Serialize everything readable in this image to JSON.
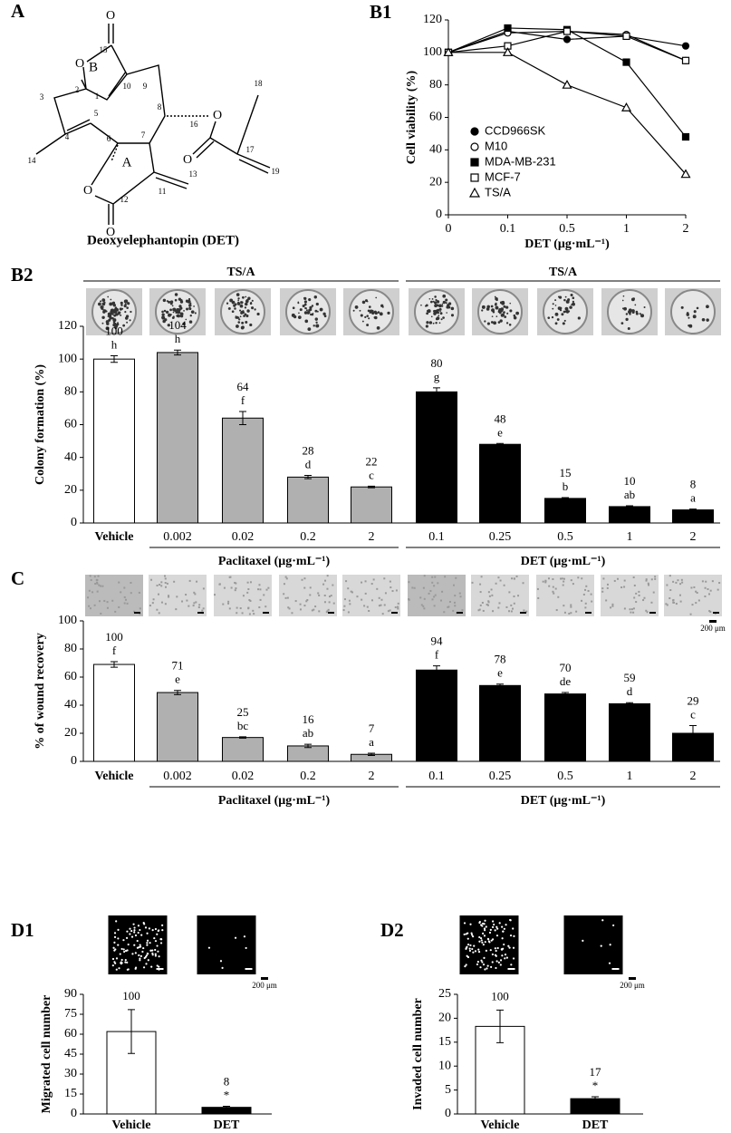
{
  "structure": {
    "panel": "A",
    "name": "Deoxyelephantopin (DET)",
    "oxygens": [
      "O",
      "O",
      "O",
      "O",
      "O",
      "O"
    ],
    "numbers": [
      "1",
      "2",
      "3",
      "4",
      "5",
      "6",
      "7",
      "8",
      "9",
      "10",
      "11",
      "12",
      "13",
      "14",
      "15",
      "16",
      "17",
      "18",
      "19"
    ],
    "rings": [
      "A",
      "B"
    ]
  },
  "chart_data": [
    {
      "type": "line",
      "panel": "B1",
      "y_label": "Cell viability (%)",
      "x_label": "DET (μg·mL⁻¹)",
      "categories": [
        "0",
        "0.1",
        "0.5",
        "1",
        "2"
      ],
      "ylim": [
        0,
        120
      ],
      "yticks": [
        0,
        20,
        40,
        60,
        80,
        100,
        120
      ],
      "series": [
        {
          "name": "CCD966SK",
          "color": "#000000",
          "marker": "circle",
          "filled": true,
          "values": [
            100,
            113,
            108,
            110,
            104
          ]
        },
        {
          "name": "M10",
          "color": "#000000",
          "marker": "circle",
          "filled": false,
          "values": [
            100,
            112,
            113,
            111,
            95
          ]
        },
        {
          "name": "MDA-MB-231",
          "color": "#000000",
          "marker": "square",
          "filled": true,
          "values": [
            100,
            115,
            114,
            94,
            48
          ]
        },
        {
          "name": "MCF-7",
          "color": "#000000",
          "marker": "square",
          "filled": false,
          "values": [
            100,
            104,
            113,
            110,
            95
          ]
        },
        {
          "name": "TS/A",
          "color": "#000000",
          "marker": "triangle",
          "filled": false,
          "values": [
            100,
            100,
            80,
            66,
            25
          ]
        }
      ]
    },
    {
      "type": "bar",
      "panel": "B2",
      "y_label": "Colony formation (%)",
      "image_headers": [
        "TS/A",
        "TS/A"
      ],
      "groups": [
        "Paclitaxel (μg·mL⁻¹)",
        "DET (μg·mL⁻¹)"
      ],
      "categories": [
        "Vehicle",
        "0.002",
        "0.02",
        "0.2",
        "2",
        "0.1",
        "0.25",
        "0.5",
        "1",
        "2"
      ],
      "values": [
        100,
        104,
        64,
        28,
        22,
        80,
        48,
        15,
        10,
        8
      ],
      "errors": [
        2,
        1.5,
        4,
        1,
        0.5,
        2.5,
        0.5,
        0.5,
        0.5,
        0.5
      ],
      "letters": [
        "h",
        "h",
        "f",
        "d",
        "c",
        "g",
        "e",
        "b",
        "ab",
        "a"
      ],
      "colors": [
        "#ffffff",
        "#b0b0b0",
        "#b0b0b0",
        "#b0b0b0",
        "#b0b0b0",
        "#000000",
        "#000000",
        "#000000",
        "#000000",
        "#000000"
      ],
      "ylim": [
        0,
        120
      ],
      "yticks": [
        0,
        20,
        40,
        60,
        80,
        100,
        120
      ]
    },
    {
      "type": "bar",
      "panel": "C",
      "y_label": "% of wound recovery",
      "scale_label": "200 μm",
      "groups": [
        "Paclitaxel (μg·mL⁻¹)",
        "DET (μg·mL⁻¹)"
      ],
      "categories": [
        "Vehicle",
        "0.002",
        "0.02",
        "0.2",
        "2",
        "0.1",
        "0.25",
        "0.5",
        "1",
        "2"
      ],
      "values": [
        69,
        49,
        17,
        11,
        5,
        65,
        54,
        48,
        41,
        20
      ],
      "errors": [
        2,
        1.5,
        0.5,
        1.2,
        0.8,
        3,
        1,
        1,
        0.8,
        5.5
      ],
      "percent_of_vehicle": [
        100,
        71,
        25,
        16,
        7,
        94,
        78,
        70,
        59,
        29
      ],
      "letters": [
        "f",
        "e",
        "bc",
        "ab",
        "a",
        "f",
        "e",
        "de",
        "d",
        "c"
      ],
      "colors": [
        "#ffffff",
        "#b0b0b0",
        "#b0b0b0",
        "#b0b0b0",
        "#b0b0b0",
        "#000000",
        "#000000",
        "#000000",
        "#000000",
        "#000000"
      ],
      "ylim": [
        0,
        100
      ],
      "yticks": [
        0,
        20,
        40,
        60,
        80,
        100
      ]
    },
    {
      "type": "bar",
      "panel": "D1",
      "y_label": "Migrated cell number",
      "scale_label": "200 μm",
      "categories": [
        "Vehicle",
        "DET"
      ],
      "values": [
        62,
        5
      ],
      "errors": [
        16.5,
        0.8
      ],
      "percent_of_vehicle": [
        100,
        8
      ],
      "letters": [
        null,
        "*"
      ],
      "colors": [
        "#ffffff",
        "#000000"
      ],
      "ylim": [
        0,
        90
      ],
      "yticks": [
        0,
        15,
        30,
        45,
        60,
        75,
        90
      ]
    },
    {
      "type": "bar",
      "panel": "D2",
      "y_label": "Invaded cell number",
      "scale_label": "200 μm",
      "categories": [
        "Vehicle",
        "DET"
      ],
      "values": [
        18.3,
        3.2
      ],
      "errors": [
        3.4,
        0.4
      ],
      "percent_of_vehicle": [
        100,
        17
      ],
      "letters": [
        null,
        "*"
      ],
      "colors": [
        "#ffffff",
        "#000000"
      ],
      "ylim": [
        0,
        25
      ],
      "yticks": [
        0,
        5,
        10,
        15,
        20,
        25
      ]
    }
  ]
}
